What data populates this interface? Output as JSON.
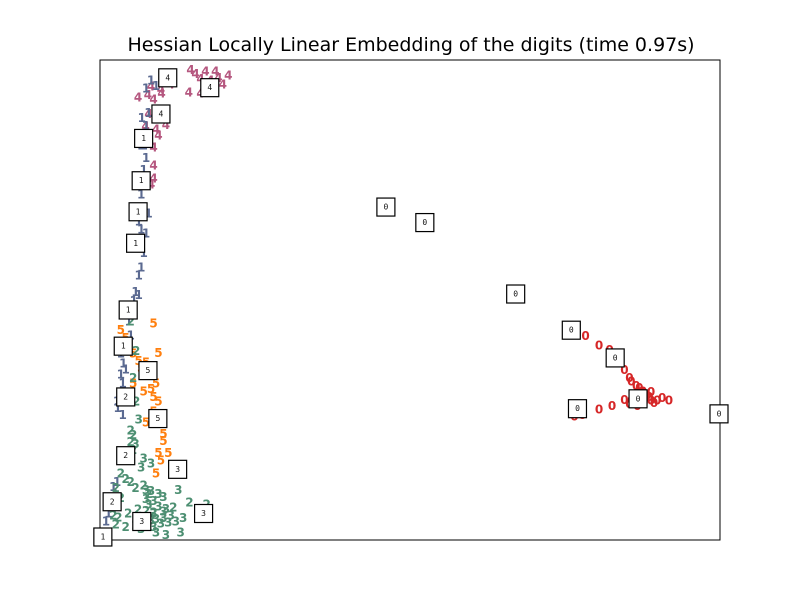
{
  "chart_data": {
    "type": "scatter",
    "title": "Hessian Locally Linear Embedding of the digits (time 0.97s)",
    "xlabel": "",
    "ylabel": "",
    "xlim": [
      0,
      1
    ],
    "ylim": [
      0,
      1
    ],
    "axis_ticks": "none",
    "grid": false,
    "legend": "none",
    "colors": {
      "0": "#d62728",
      "1": "#5b6a91",
      "2": "#4d8f72",
      "3": "#4d8f72",
      "4": "#b5577f",
      "5": "#ff7f0e"
    },
    "points": [
      {
        "label": "0",
        "x": 0.784,
        "y": 0.428
      },
      {
        "label": "0",
        "x": 0.806,
        "y": 0.407
      },
      {
        "label": "0",
        "x": 0.823,
        "y": 0.398
      },
      {
        "label": "0",
        "x": 0.839,
        "y": 0.369
      },
      {
        "label": "0",
        "x": 0.847,
        "y": 0.355
      },
      {
        "label": "0",
        "x": 0.855,
        "y": 0.338
      },
      {
        "label": "0",
        "x": 0.858,
        "y": 0.331
      },
      {
        "label": "0",
        "x": 0.866,
        "y": 0.321
      },
      {
        "label": "0",
        "x": 0.871,
        "y": 0.317
      },
      {
        "label": "0",
        "x": 0.877,
        "y": 0.31
      },
      {
        "label": "0",
        "x": 0.882,
        "y": 0.3
      },
      {
        "label": "0",
        "x": 0.887,
        "y": 0.298
      },
      {
        "label": "0",
        "x": 0.89,
        "y": 0.29
      },
      {
        "label": "0",
        "x": 0.895,
        "y": 0.285
      },
      {
        "label": "0",
        "x": 0.9,
        "y": 0.29
      },
      {
        "label": "0",
        "x": 0.879,
        "y": 0.285
      },
      {
        "label": "0",
        "x": 0.868,
        "y": 0.279
      },
      {
        "label": "0",
        "x": 0.855,
        "y": 0.283
      },
      {
        "label": "0",
        "x": 0.847,
        "y": 0.292
      },
      {
        "label": "0",
        "x": 0.858,
        "y": 0.29
      },
      {
        "label": "0",
        "x": 0.871,
        "y": 0.294
      },
      {
        "label": "0",
        "x": 0.827,
        "y": 0.279
      },
      {
        "label": "0",
        "x": 0.806,
        "y": 0.271
      },
      {
        "label": "0",
        "x": 0.779,
        "y": 0.26
      },
      {
        "label": "0",
        "x": 0.766,
        "y": 0.256
      },
      {
        "label": "0",
        "x": 0.89,
        "y": 0.308
      },
      {
        "label": "0",
        "x": 0.874,
        "y": 0.308
      },
      {
        "label": "0",
        "x": 0.863,
        "y": 0.3
      },
      {
        "label": "0",
        "x": 0.908,
        "y": 0.296
      },
      {
        "label": "0",
        "x": 0.919,
        "y": 0.29
      },
      {
        "label": "4",
        "x": 0.145,
        "y": 0.994
      },
      {
        "label": "4",
        "x": 0.153,
        "y": 0.985
      },
      {
        "label": "4",
        "x": 0.161,
        "y": 0.975
      },
      {
        "label": "4",
        "x": 0.169,
        "y": 0.99
      },
      {
        "label": "4",
        "x": 0.177,
        "y": 0.971
      },
      {
        "label": "4",
        "x": 0.185,
        "y": 0.99
      },
      {
        "label": "4",
        "x": 0.19,
        "y": 0.977
      },
      {
        "label": "4",
        "x": 0.197,
        "y": 0.963
      },
      {
        "label": "4",
        "x": 0.177,
        "y": 0.96
      },
      {
        "label": "4",
        "x": 0.161,
        "y": 0.944
      },
      {
        "label": "4",
        "x": 0.142,
        "y": 0.946
      },
      {
        "label": "4",
        "x": 0.081,
        "y": 0.958
      },
      {
        "label": "4",
        "x": 0.097,
        "y": 0.952
      },
      {
        "label": "4",
        "x": 0.113,
        "y": 0.963
      },
      {
        "label": "4",
        "x": 0.098,
        "y": 0.944
      },
      {
        "label": "4",
        "x": 0.085,
        "y": 0.931
      },
      {
        "label": "4",
        "x": 0.097,
        "y": 0.9
      },
      {
        "label": "4",
        "x": 0.105,
        "y": 0.877
      },
      {
        "label": "4",
        "x": 0.089,
        "y": 0.867
      },
      {
        "label": "4",
        "x": 0.093,
        "y": 0.854
      },
      {
        "label": "4",
        "x": 0.085,
        "y": 0.829
      },
      {
        "label": "4",
        "x": 0.085,
        "y": 0.79
      },
      {
        "label": "4",
        "x": 0.085,
        "y": 0.763
      },
      {
        "label": "4",
        "x": 0.081,
        "y": 0.75
      },
      {
        "label": "4",
        "x": 0.077,
        "y": 0.9
      },
      {
        "label": "4",
        "x": 0.072,
        "y": 0.873
      },
      {
        "label": "4",
        "x": 0.06,
        "y": 0.935
      },
      {
        "label": "4",
        "x": 0.076,
        "y": 0.94
      },
      {
        "label": "4",
        "x": 0.111,
        "y": 0.973
      },
      {
        "label": "4",
        "x": 0.206,
        "y": 0.982
      },
      {
        "label": "1",
        "x": 0.081,
        "y": 0.971
      },
      {
        "label": "1",
        "x": 0.089,
        "y": 0.96
      },
      {
        "label": "1",
        "x": 0.073,
        "y": 0.954
      },
      {
        "label": "1",
        "x": 0.077,
        "y": 0.902
      },
      {
        "label": "1",
        "x": 0.066,
        "y": 0.892
      },
      {
        "label": "1",
        "x": 0.073,
        "y": 0.875
      },
      {
        "label": "1",
        "x": 0.073,
        "y": 0.852
      },
      {
        "label": "1",
        "x": 0.069,
        "y": 0.833
      },
      {
        "label": "1",
        "x": 0.073,
        "y": 0.806
      },
      {
        "label": "1",
        "x": 0.069,
        "y": 0.781
      },
      {
        "label": "1",
        "x": 0.073,
        "y": 0.76
      },
      {
        "label": "1",
        "x": 0.065,
        "y": 0.729
      },
      {
        "label": "1",
        "x": 0.077,
        "y": 0.688
      },
      {
        "label": "1",
        "x": 0.065,
        "y": 0.654
      },
      {
        "label": "1",
        "x": 0.073,
        "y": 0.646
      },
      {
        "label": "1",
        "x": 0.069,
        "y": 0.604
      },
      {
        "label": "1",
        "x": 0.065,
        "y": 0.573
      },
      {
        "label": "1",
        "x": 0.061,
        "y": 0.556
      },
      {
        "label": "1",
        "x": 0.056,
        "y": 0.521
      },
      {
        "label": "1",
        "x": 0.053,
        "y": 0.502
      },
      {
        "label": "1",
        "x": 0.061,
        "y": 0.515
      },
      {
        "label": "1",
        "x": 0.045,
        "y": 0.458
      },
      {
        "label": "1",
        "x": 0.048,
        "y": 0.429
      },
      {
        "label": "1",
        "x": 0.04,
        "y": 0.396
      },
      {
        "label": "1",
        "x": 0.036,
        "y": 0.369
      },
      {
        "label": "1",
        "x": 0.032,
        "y": 0.346
      },
      {
        "label": "1",
        "x": 0.035,
        "y": 0.327
      },
      {
        "label": "1",
        "x": 0.03,
        "y": 0.307
      },
      {
        "label": "1",
        "x": 0.026,
        "y": 0.288
      },
      {
        "label": "1",
        "x": 0.035,
        "y": 0.26
      },
      {
        "label": "1",
        "x": 0.026,
        "y": 0.117
      },
      {
        "label": "1",
        "x": 0.02,
        "y": 0.106
      },
      {
        "label": "1",
        "x": 0.008,
        "y": 0.079
      },
      {
        "label": "1",
        "x": 0.016,
        "y": 0.063
      },
      {
        "label": "1",
        "x": 0.012,
        "y": 0.05
      },
      {
        "label": "1",
        "x": 0.008,
        "y": 0.033
      },
      {
        "label": "1",
        "x": 0.027,
        "y": 0.275
      },
      {
        "label": "1",
        "x": 0.04,
        "y": 0.356
      },
      {
        "label": "1",
        "x": 0.032,
        "y": 0.39
      },
      {
        "label": "1",
        "x": 0.061,
        "y": 0.671
      },
      {
        "label": "1",
        "x": 0.065,
        "y": 0.833
      },
      {
        "label": "5",
        "x": 0.032,
        "y": 0.44
      },
      {
        "label": "5",
        "x": 0.04,
        "y": 0.423
      },
      {
        "label": "5",
        "x": 0.044,
        "y": 0.41
      },
      {
        "label": "5",
        "x": 0.085,
        "y": 0.454
      },
      {
        "label": "5",
        "x": 0.093,
        "y": 0.392
      },
      {
        "label": "5",
        "x": 0.052,
        "y": 0.39
      },
      {
        "label": "5",
        "x": 0.061,
        "y": 0.375
      },
      {
        "label": "5",
        "x": 0.073,
        "y": 0.371
      },
      {
        "label": "5",
        "x": 0.077,
        "y": 0.356
      },
      {
        "label": "5",
        "x": 0.085,
        "y": 0.344
      },
      {
        "label": "5",
        "x": 0.089,
        "y": 0.327
      },
      {
        "label": "5",
        "x": 0.081,
        "y": 0.315
      },
      {
        "label": "5",
        "x": 0.085,
        "y": 0.298
      },
      {
        "label": "5",
        "x": 0.093,
        "y": 0.288
      },
      {
        "label": "5",
        "x": 0.069,
        "y": 0.31
      },
      {
        "label": "5",
        "x": 0.085,
        "y": 0.267
      },
      {
        "label": "5",
        "x": 0.073,
        "y": 0.244
      },
      {
        "label": "5",
        "x": 0.101,
        "y": 0.219
      },
      {
        "label": "5",
        "x": 0.101,
        "y": 0.204
      },
      {
        "label": "5",
        "x": 0.093,
        "y": 0.179
      },
      {
        "label": "5",
        "x": 0.109,
        "y": 0.179
      },
      {
        "label": "5",
        "x": 0.097,
        "y": 0.163
      },
      {
        "label": "5",
        "x": 0.089,
        "y": 0.135
      },
      {
        "label": "5",
        "x": 0.065,
        "y": 0.36
      },
      {
        "label": "5",
        "x": 0.052,
        "y": 0.327
      },
      {
        "label": "2",
        "x": 0.048,
        "y": 0.458
      },
      {
        "label": "2",
        "x": 0.057,
        "y": 0.396
      },
      {
        "label": "2",
        "x": 0.052,
        "y": 0.338
      },
      {
        "label": "2",
        "x": 0.057,
        "y": 0.288
      },
      {
        "label": "2",
        "x": 0.048,
        "y": 0.227
      },
      {
        "label": "2",
        "x": 0.052,
        "y": 0.217
      },
      {
        "label": "2",
        "x": 0.048,
        "y": 0.202
      },
      {
        "label": "2",
        "x": 0.052,
        "y": 0.185
      },
      {
        "label": "2",
        "x": 0.032,
        "y": 0.135
      },
      {
        "label": "2",
        "x": 0.04,
        "y": 0.123
      },
      {
        "label": "2",
        "x": 0.024,
        "y": 0.104
      },
      {
        "label": "2",
        "x": 0.048,
        "y": 0.117
      },
      {
        "label": "2",
        "x": 0.056,
        "y": 0.104
      },
      {
        "label": "2",
        "x": 0.069,
        "y": 0.11
      },
      {
        "label": "2",
        "x": 0.077,
        "y": 0.092
      },
      {
        "label": "2",
        "x": 0.032,
        "y": 0.083
      },
      {
        "label": "2",
        "x": 0.02,
        "y": 0.046
      },
      {
        "label": "2",
        "x": 0.028,
        "y": 0.042
      },
      {
        "label": "2",
        "x": 0.044,
        "y": 0.05
      },
      {
        "label": "2",
        "x": 0.06,
        "y": 0.058
      },
      {
        "label": "2",
        "x": 0.073,
        "y": 0.055
      },
      {
        "label": "2",
        "x": 0.085,
        "y": 0.052
      },
      {
        "label": "2",
        "x": 0.069,
        "y": 0.04
      },
      {
        "label": "2",
        "x": 0.056,
        "y": 0.025
      },
      {
        "label": "2",
        "x": 0.04,
        "y": 0.021
      },
      {
        "label": "2",
        "x": 0.024,
        "y": 0.027
      },
      {
        "label": "2",
        "x": 0.117,
        "y": 0.063
      },
      {
        "label": "2",
        "x": 0.143,
        "y": 0.073
      },
      {
        "label": "2",
        "x": 0.171,
        "y": 0.069
      },
      {
        "label": "3",
        "x": 0.061,
        "y": 0.25
      },
      {
        "label": "3",
        "x": 0.056,
        "y": 0.198
      },
      {
        "label": "3",
        "x": 0.069,
        "y": 0.167
      },
      {
        "label": "3",
        "x": 0.081,
        "y": 0.156
      },
      {
        "label": "3",
        "x": 0.065,
        "y": 0.148
      },
      {
        "label": "3",
        "x": 0.081,
        "y": 0.098
      },
      {
        "label": "3",
        "x": 0.073,
        "y": 0.081
      },
      {
        "label": "3",
        "x": 0.093,
        "y": 0.092
      },
      {
        "label": "3",
        "x": 0.101,
        "y": 0.085
      },
      {
        "label": "3",
        "x": 0.085,
        "y": 0.077
      },
      {
        "label": "3",
        "x": 0.077,
        "y": 0.069
      },
      {
        "label": "3",
        "x": 0.093,
        "y": 0.065
      },
      {
        "label": "3",
        "x": 0.101,
        "y": 0.054
      },
      {
        "label": "3",
        "x": 0.085,
        "y": 0.05
      },
      {
        "label": "3",
        "x": 0.089,
        "y": 0.038
      },
      {
        "label": "3",
        "x": 0.101,
        "y": 0.04
      },
      {
        "label": "3",
        "x": 0.113,
        "y": 0.046
      },
      {
        "label": "3",
        "x": 0.097,
        "y": 0.029
      },
      {
        "label": "3",
        "x": 0.085,
        "y": 0.021
      },
      {
        "label": "3",
        "x": 0.109,
        "y": 0.031
      },
      {
        "label": "3",
        "x": 0.121,
        "y": 0.033
      },
      {
        "label": "3",
        "x": 0.129,
        "y": 0.01
      },
      {
        "label": "3",
        "x": 0.089,
        "y": 0.01
      },
      {
        "label": "3",
        "x": 0.105,
        "y": 0.004
      },
      {
        "label": "3",
        "x": 0.065,
        "y": 0.017
      },
      {
        "label": "3",
        "x": 0.125,
        "y": 0.1
      },
      {
        "label": "3",
        "x": 0.073,
        "y": 0.1
      },
      {
        "label": "3",
        "x": 0.133,
        "y": 0.04
      },
      {
        "label": "3",
        "x": 0.081,
        "y": 0.035
      },
      {
        "label": "3",
        "x": 0.105,
        "y": 0.06
      },
      {
        "label": "3",
        "x": 0.065,
        "y": 0.021
      }
    ],
    "thumbnails": [
      {
        "label": "4",
        "x": 0.108,
        "y": 0.977
      },
      {
        "label": "4",
        "x": 0.176,
        "y": 0.956
      },
      {
        "label": "4",
        "x": 0.097,
        "y": 0.9
      },
      {
        "label": "1",
        "x": 0.069,
        "y": 0.848
      },
      {
        "label": "1",
        "x": 0.065,
        "y": 0.758
      },
      {
        "label": "1",
        "x": 0.06,
        "y": 0.692
      },
      {
        "label": "1",
        "x": 0.056,
        "y": 0.625
      },
      {
        "label": "1",
        "x": 0.044,
        "y": 0.483
      },
      {
        "label": "1",
        "x": 0.036,
        "y": 0.406
      },
      {
        "label": "1",
        "x": 0.003,
        "y": 0.0
      },
      {
        "label": "2",
        "x": 0.04,
        "y": 0.298
      },
      {
        "label": "2",
        "x": 0.04,
        "y": 0.173
      },
      {
        "label": "2",
        "x": 0.018,
        "y": 0.075
      },
      {
        "label": "3",
        "x": 0.124,
        "y": 0.144
      },
      {
        "label": "3",
        "x": 0.166,
        "y": 0.05
      },
      {
        "label": "3",
        "x": 0.066,
        "y": 0.033
      },
      {
        "label": "5",
        "x": 0.076,
        "y": 0.354
      },
      {
        "label": "5",
        "x": 0.092,
        "y": 0.252
      },
      {
        "label": "0",
        "x": 0.461,
        "y": 0.702
      },
      {
        "label": "0",
        "x": 0.524,
        "y": 0.669
      },
      {
        "label": "0",
        "x": 0.671,
        "y": 0.517
      },
      {
        "label": "0",
        "x": 0.761,
        "y": 0.44
      },
      {
        "label": "0",
        "x": 0.832,
        "y": 0.381
      },
      {
        "label": "0",
        "x": 0.869,
        "y": 0.294
      },
      {
        "label": "0",
        "x": 0.771,
        "y": 0.273
      },
      {
        "label": "0",
        "x": 1.0,
        "y": 0.262
      }
    ]
  }
}
